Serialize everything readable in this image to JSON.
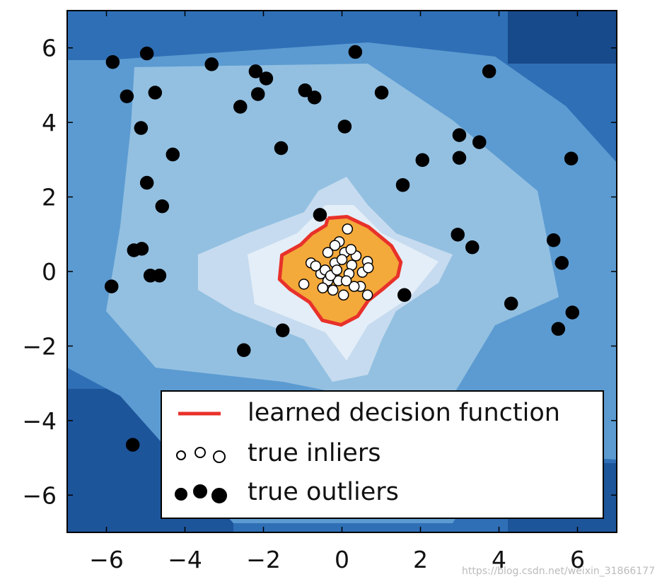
{
  "chart_data": {
    "type": "scatter",
    "xlim": [
      -7,
      7
    ],
    "ylim": [
      -7,
      7
    ],
    "xticks": [
      {
        "value": -6,
        "label": "−6"
      },
      {
        "value": -4,
        "label": "−4"
      },
      {
        "value": -2,
        "label": "−2"
      },
      0,
      2,
      4,
      6
    ],
    "yticks": [
      {
        "value": -6,
        "label": "−6"
      },
      {
        "value": -4,
        "label": "−4"
      },
      {
        "value": -2,
        "label": "−2"
      },
      0,
      2,
      4,
      6
    ],
    "legend": "lower right",
    "series": [
      {
        "name": "learned decision function",
        "type": "line",
        "color": "#e8312a",
        "fill": "#f4a93b",
        "x": [
          -0.36,
          0.13,
          0.67,
          1.26,
          1.5,
          1.42,
          1.03,
          0.67,
          0.4,
          -0.02,
          -0.5,
          -0.83,
          -1.32,
          -1.59,
          -1.53,
          -1.05,
          -0.77,
          -0.41,
          -0.36
        ],
        "values": [
          1.43,
          1.47,
          1.2,
          0.69,
          0.25,
          -0.13,
          -0.48,
          -0.78,
          -1.2,
          -1.43,
          -1.31,
          -0.82,
          -0.48,
          -0.21,
          0.44,
          0.72,
          1.01,
          1.24,
          1.43
        ]
      },
      {
        "name": "true inliers",
        "type": "scatter",
        "color": "#ffffff",
        "x": [
          0.14,
          -0.07,
          -0.79,
          -0.97,
          0.65,
          0.65,
          0.47,
          -0.18,
          0.25,
          -0.36,
          0.07,
          -0.54,
          -0.36,
          -0.23,
          0.04,
          0.31,
          -0.09,
          0.18,
          -0.43,
          0.36,
          0,
          -0.29,
          0.52,
          -0.49,
          -0.18,
          0.23,
          0.67,
          -0.67,
          0.11,
          -0.13
        ],
        "values": [
          1.14,
          0.8,
          0.23,
          -0.34,
          0.27,
          -0.63,
          -0.4,
          0.23,
          0.17,
          0.51,
          0.51,
          -0.06,
          -0.25,
          -0.5,
          -0.63,
          -0.4,
          -0.25,
          -0.06,
          0.04,
          0.42,
          0.32,
          -0.11,
          -0.02,
          -0.44,
          0.7,
          0.59,
          0.1,
          0.15,
          -0.25,
          0.04
        ]
      },
      {
        "name": "true outliers",
        "type": "scatter",
        "color": "#000000",
        "x": [
          -5.84,
          -4.97,
          -3.32,
          0.34,
          3.75,
          -5.48,
          -4.76,
          -2.2,
          -1.93,
          -2.14,
          -2.59,
          -0.94,
          -0.7,
          1.01,
          0.07,
          -5.12,
          -4.31,
          -1.55,
          2.99,
          3.5,
          2.99,
          2.05,
          5.84,
          -4.97,
          1.55,
          -4.58,
          -0.56,
          2.95,
          3.32,
          5.39,
          -5.3,
          -5.1,
          5.6,
          -4.88,
          -4.65,
          -5.87,
          1.59,
          4.31,
          5.87,
          5.51,
          -1.51,
          -2.5,
          -5.33
        ],
        "values": [
          5.62,
          5.85,
          5.56,
          5.89,
          5.37,
          4.7,
          4.8,
          5.37,
          5.18,
          4.76,
          4.42,
          4.86,
          4.67,
          4.8,
          3.89,
          3.85,
          3.14,
          3.31,
          3.66,
          3.47,
          3.05,
          2.99,
          3.03,
          2.38,
          2.32,
          1.75,
          1.52,
          0.99,
          0.65,
          0.84,
          0.57,
          0.61,
          0.23,
          -0.11,
          -0.11,
          -0.4,
          -0.63,
          -0.86,
          -1.1,
          -1.54,
          -1.58,
          -2.11,
          -4.65
        ]
      }
    ],
    "watermark": "https://blog.csdn.net/weixin_31866177"
  }
}
